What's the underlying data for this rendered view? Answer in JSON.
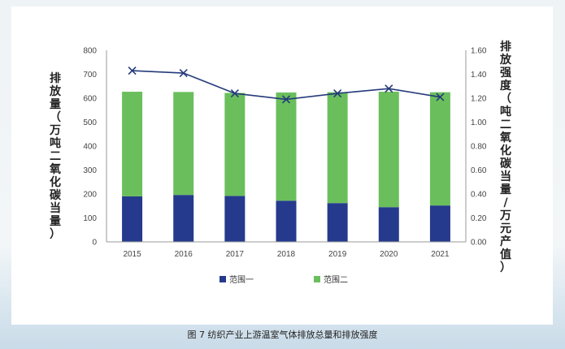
{
  "caption": "图 7 纺织产业上游温室气体排放总量和排放强度",
  "chart_data": {
    "type": "bar",
    "categories": [
      "2015",
      "2016",
      "2017",
      "2018",
      "2019",
      "2020",
      "2021"
    ],
    "series": [
      {
        "name": "范围一",
        "type": "bar",
        "axis": "left",
        "values": [
          190,
          196,
          192,
          172,
          162,
          145,
          152
        ]
      },
      {
        "name": "范围二",
        "type": "bar",
        "axis": "left",
        "values": [
          437,
          430,
          430,
          452,
          463,
          482,
          473
        ]
      },
      {
        "name": "",
        "type": "line",
        "axis": "right",
        "values": [
          1.43,
          1.41,
          1.24,
          1.19,
          1.24,
          1.28,
          1.21
        ]
      }
    ],
    "ylabel": "排放量（万吨二氧化碳当量）",
    "y2label": "排放强度（吨二氧化碳当量/万元产值）",
    "ylim": [
      0,
      800
    ],
    "y2lim": [
      0,
      1.6
    ],
    "yticks": [
      "0",
      "100",
      "200",
      "300",
      "400",
      "500",
      "600",
      "700",
      "800"
    ],
    "y2ticks": [
      "0.00",
      "0.20",
      "0.40",
      "0.60",
      "0.80",
      "1.00",
      "1.20",
      "1.40",
      "1.60"
    ],
    "stacked": true,
    "grid": false,
    "legend_position": "bottom",
    "colors": {
      "scope1": "#253a8c",
      "scope2": "#6abf5c",
      "line": "#243a7a",
      "axis": "#999999"
    }
  }
}
